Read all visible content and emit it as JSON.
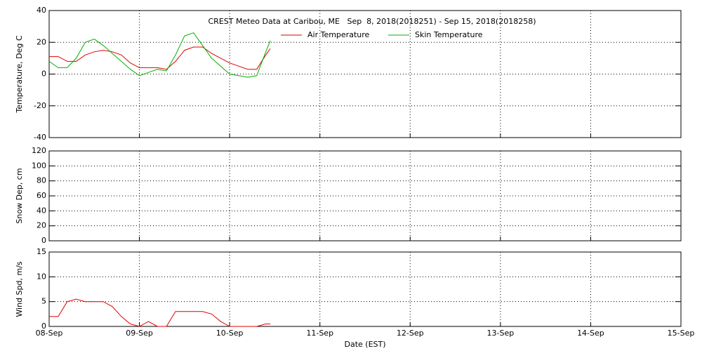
{
  "chart_data": [
    {
      "type": "line",
      "title": "CREST Meteo Data at Caribou, ME   Sep  8, 2018(2018251) - Sep 15, 2018(2018258)",
      "ylabel": "Temperature, Deg C",
      "xlim": [
        0,
        7
      ],
      "xticks": [
        0,
        1,
        2,
        3,
        4,
        5,
        6,
        7
      ],
      "ylim": [
        -40,
        40
      ],
      "yticks": [
        -40,
        -20,
        0,
        20,
        40
      ],
      "grid": true,
      "x": [
        0,
        0.1,
        0.2,
        0.3,
        0.4,
        0.5,
        0.6,
        0.7,
        0.8,
        0.9,
        1.0,
        1.1,
        1.2,
        1.3,
        1.4,
        1.5,
        1.6,
        1.7,
        1.8,
        1.9,
        2.0,
        2.1,
        2.2,
        2.3,
        2.4,
        2.45
      ],
      "series": [
        {
          "name": "Air Temperature",
          "color": "#e00000",
          "values": [
            11,
            11,
            8,
            8,
            12,
            14,
            15,
            14,
            12,
            7,
            4,
            4,
            4,
            3,
            8,
            15,
            17,
            17,
            13,
            10,
            7,
            5,
            3,
            3,
            12,
            16
          ]
        },
        {
          "name": "Skin Temperature",
          "color": "#00b000",
          "values": [
            8,
            4,
            4,
            10,
            20,
            22,
            18,
            13,
            8,
            3,
            -1,
            1,
            3,
            2,
            12,
            24,
            26,
            18,
            10,
            5,
            0,
            -1,
            -2,
            -1,
            14,
            21
          ]
        }
      ]
    },
    {
      "type": "line",
      "ylabel": "Snow Dep, cm",
      "xlim": [
        0,
        7
      ],
      "xticks": [
        0,
        1,
        2,
        3,
        4,
        5,
        6,
        7
      ],
      "ylim": [
        0,
        120
      ],
      "yticks": [
        0,
        20,
        40,
        60,
        80,
        100,
        120
      ],
      "grid": true,
      "x": [],
      "series": []
    },
    {
      "type": "line",
      "ylabel": "Wind Spd, m/s",
      "xlabel": "Date (EST)",
      "xlim": [
        0,
        7
      ],
      "xticks": [
        {
          "value": 0,
          "label": "08-Sep"
        },
        {
          "value": 1,
          "label": "09-Sep"
        },
        {
          "value": 2,
          "label": "10-Sep"
        },
        {
          "value": 3,
          "label": "11-Sep"
        },
        {
          "value": 4,
          "label": "12-Sep"
        },
        {
          "value": 5,
          "label": "13-Sep"
        },
        {
          "value": 6,
          "label": "14-Sep"
        },
        {
          "value": 7,
          "label": "15-Sep"
        }
      ],
      "ylim": [
        0,
        15
      ],
      "yticks": [
        0,
        5,
        10,
        15
      ],
      "grid": true,
      "x": [
        0,
        0.1,
        0.2,
        0.3,
        0.4,
        0.5,
        0.6,
        0.7,
        0.8,
        0.9,
        1.0,
        1.1,
        1.2,
        1.3,
        1.4,
        1.5,
        1.6,
        1.7,
        1.8,
        1.9,
        2.0,
        2.1,
        2.2,
        2.3,
        2.4,
        2.45
      ],
      "series": [
        {
          "color": "#e00000",
          "values": [
            2,
            2,
            5,
            5.5,
            5,
            5,
            5,
            4,
            2,
            0.5,
            0,
            1,
            0,
            0,
            3,
            3,
            3,
            3,
            2.5,
            1,
            0,
            0,
            0,
            0,
            0.5,
            0.5
          ]
        }
      ]
    }
  ]
}
